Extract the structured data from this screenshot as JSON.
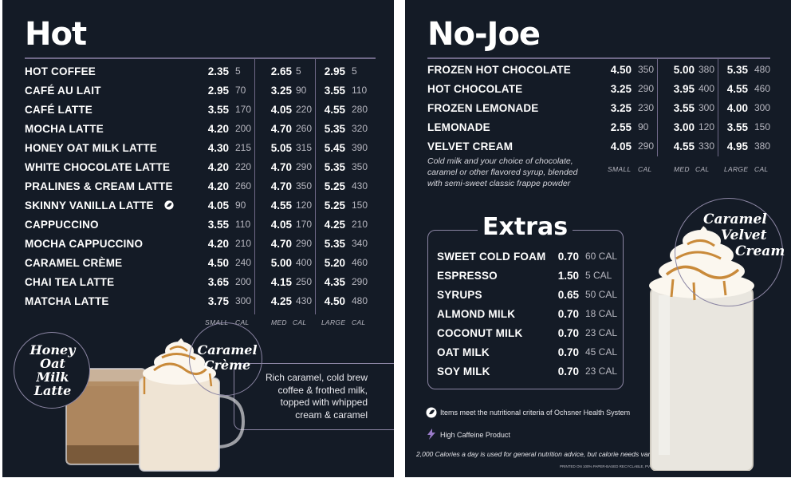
{
  "hot": {
    "title": "Hot",
    "items": [
      {
        "name": "HOT COFFEE",
        "s": "2.35",
        "sc": "5",
        "m": "2.65",
        "mc": "5",
        "l": "2.95",
        "lc": "5"
      },
      {
        "name": "CAFÉ AU LAIT",
        "s": "2.95",
        "sc": "70",
        "m": "3.25",
        "mc": "90",
        "l": "3.55",
        "lc": "110"
      },
      {
        "name": "CAFÉ LATTE",
        "s": "3.55",
        "sc": "170",
        "m": "4.05",
        "mc": "220",
        "l": "4.55",
        "lc": "280"
      },
      {
        "name": "MOCHA LATTE",
        "s": "4.20",
        "sc": "200",
        "m": "4.70",
        "mc": "260",
        "l": "5.35",
        "lc": "320"
      },
      {
        "name": "HONEY OAT MILK LATTE",
        "s": "4.30",
        "sc": "215",
        "m": "5.05",
        "mc": "315",
        "l": "5.45",
        "lc": "390"
      },
      {
        "name": "WHITE CHOCOLATE LATTE",
        "s": "4.20",
        "sc": "220",
        "m": "4.70",
        "mc": "290",
        "l": "5.35",
        "lc": "350"
      },
      {
        "name": "PRALINES & CREAM LATTE",
        "s": "4.20",
        "sc": "260",
        "m": "4.70",
        "mc": "350",
        "l": "5.25",
        "lc": "430"
      },
      {
        "name": "SKINNY VANILLA LATTE",
        "s": "4.05",
        "sc": "90",
        "m": "4.55",
        "mc": "120",
        "l": "5.25",
        "lc": "150",
        "health": true
      },
      {
        "name": "CAPPUCCINO",
        "s": "3.55",
        "sc": "110",
        "m": "4.05",
        "mc": "170",
        "l": "4.25",
        "lc": "210"
      },
      {
        "name": "MOCHA CAPPUCCINO",
        "s": "4.20",
        "sc": "210",
        "m": "4.70",
        "mc": "290",
        "l": "5.35",
        "lc": "340"
      },
      {
        "name": "CARAMEL CRÈME",
        "s": "4.50",
        "sc": "240",
        "m": "5.00",
        "mc": "400",
        "l": "5.20",
        "lc": "460"
      },
      {
        "name": "CHAI TEA LATTE",
        "s": "3.65",
        "sc": "200",
        "m": "4.15",
        "mc": "250",
        "l": "4.35",
        "lc": "290"
      },
      {
        "name": "MATCHA LATTE",
        "s": "3.75",
        "sc": "300",
        "m": "4.25",
        "mc": "430",
        "l": "4.50",
        "lc": "480"
      }
    ],
    "size_labels": {
      "small": "SMALL",
      "med": "MED",
      "large": "LARGE",
      "cal": "CAL"
    },
    "feature1": "Honey Oat Milk Latte",
    "feature1_lines": [
      "Honey",
      "Oat",
      "Milk",
      "Latte"
    ],
    "feature2_lines": [
      "Caramel",
      "Crème"
    ],
    "feature2_desc": [
      "Rich caramel, cold brew",
      "coffee & frothed milk,",
      "topped with whipped",
      "cream & caramel"
    ]
  },
  "nojoe": {
    "title": "No-Joe",
    "items": [
      {
        "name": "FROZEN HOT CHOCOLATE",
        "s": "4.50",
        "sc": "350",
        "m": "5.00",
        "mc": "380",
        "l": "5.35",
        "lc": "480"
      },
      {
        "name": "HOT CHOCOLATE",
        "s": "3.25",
        "sc": "290",
        "m": "3.95",
        "mc": "400",
        "l": "4.55",
        "lc": "460"
      },
      {
        "name": "FROZEN LEMONADE",
        "s": "3.25",
        "sc": "230",
        "m": "3.55",
        "mc": "300",
        "l": "4.00",
        "lc": "300"
      },
      {
        "name": "LEMONADE",
        "s": "2.55",
        "sc": "90",
        "m": "3.00",
        "mc": "120",
        "l": "3.55",
        "lc": "150"
      },
      {
        "name": "VELVET CREAM",
        "s": "4.05",
        "sc": "290",
        "m": "4.55",
        "mc": "330",
        "l": "4.95",
        "lc": "380"
      }
    ],
    "velvet_desc": [
      "Cold milk and your choice of chocolate,",
      "caramel or other flavored syrup, blended",
      "with semi-sweet classic frappe powder"
    ],
    "size_labels": {
      "small": "SMALL",
      "med": "MED",
      "large": "LARGE",
      "cal": "CAL"
    },
    "feature_lines": [
      "Caramel",
      "Velvet",
      "Cream"
    ]
  },
  "extras": {
    "title": "Extras",
    "items": [
      {
        "name": "SWEET COLD FOAM",
        "price": "0.70",
        "cal": "60 CAL"
      },
      {
        "name": "ESPRESSO",
        "price": "1.50",
        "cal": "5 CAL"
      },
      {
        "name": "SYRUPS",
        "price": "0.65",
        "cal": "50 CAL"
      },
      {
        "name": "ALMOND MILK",
        "price": "0.70",
        "cal": "18 CAL"
      },
      {
        "name": "COCONUT MILK",
        "price": "0.70",
        "cal": "23 CAL"
      },
      {
        "name": "OAT MILK",
        "price": "0.70",
        "cal": "45 CAL"
      },
      {
        "name": "SOY MILK",
        "price": "0.70",
        "cal": "23 CAL"
      }
    ]
  },
  "footnotes": {
    "health": "Items meet the nutritional criteria of Ochsner Health System",
    "caffeine": "High Caffeine Product",
    "calories": "2,000 Calories a day is used for general nutrition advice, but calorie needs vary.",
    "printed": "PRINTED ON 100% PAPER-BASED RECYCLABLE, PVC FREE STOCK."
  },
  "colors": {
    "background": "#141b26",
    "accent": "#8b85a3",
    "caramel": "#c98a3a"
  }
}
